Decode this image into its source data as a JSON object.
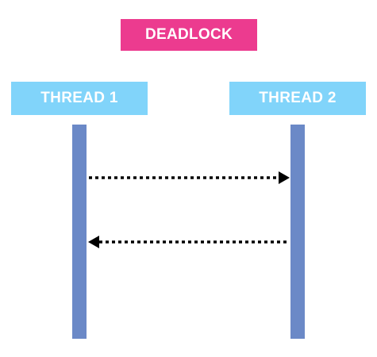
{
  "title": "DEADLOCK",
  "threads": [
    {
      "label": "THREAD 1"
    },
    {
      "label": "THREAD 2"
    }
  ],
  "messages": [
    {
      "from": "THREAD 1",
      "to": "THREAD 2",
      "style": "dotted"
    },
    {
      "from": "THREAD 2",
      "to": "THREAD 1",
      "style": "dotted"
    }
  ],
  "colors": {
    "title_bg": "#ec3b8f",
    "thread_bg": "#81d4fa",
    "lifeline": "#6b89c7",
    "arrow": "#000000",
    "text": "#ffffff"
  }
}
